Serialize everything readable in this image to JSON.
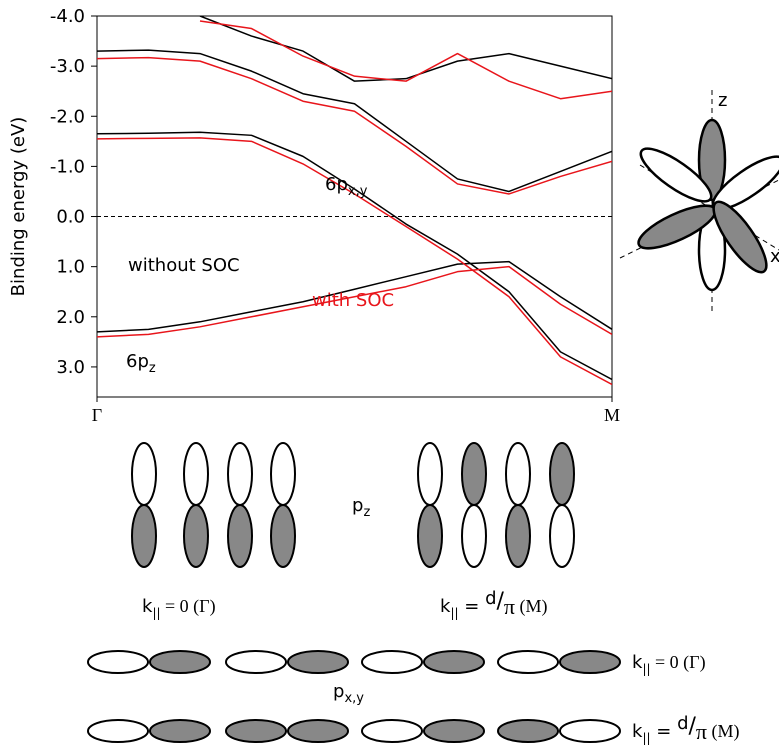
{
  "chart_data": {
    "type": "line",
    "y_label": "Binding energy (eV)",
    "x": [
      0,
      0.1,
      0.2,
      0.3,
      0.4,
      0.5,
      0.6,
      0.7,
      0.8,
      0.9,
      1.0
    ],
    "xlim": [
      0,
      1
    ],
    "xticks": [
      {
        "value": 0,
        "label": "Γ"
      },
      {
        "value": 1,
        "label": "M"
      }
    ],
    "ylim": [
      3.6,
      -4.0
    ],
    "yticks": [
      {
        "value": -4,
        "label": "-4.0"
      },
      {
        "value": -3,
        "label": "-3.0"
      },
      {
        "value": -2,
        "label": "-2.0"
      },
      {
        "value": -1,
        "label": "-1.0"
      },
      {
        "value": 0,
        "label": "0.0"
      },
      {
        "value": 1,
        "label": "1.0"
      },
      {
        "value": 2,
        "label": "2.0"
      },
      {
        "value": 3,
        "label": "3.0"
      }
    ],
    "reference_line": 0,
    "series": [
      {
        "color": "#000000",
        "values": [
          -1.65,
          -1.66,
          -1.68,
          -1.62,
          -1.2,
          -0.55,
          0.15,
          0.75,
          1.5,
          2.7,
          3.25
        ]
      },
      {
        "color": "#000000",
        "values": [
          2.3,
          2.25,
          2.1,
          1.9,
          1.7,
          1.45,
          1.2,
          0.95,
          0.9,
          1.6,
          2.25
        ]
      },
      {
        "color": "#000000",
        "values": [
          -3.3,
          -3.32,
          -3.25,
          -2.9,
          -2.45,
          -2.25,
          -1.5,
          -0.75,
          -0.5,
          -0.9,
          -1.3
        ]
      },
      {
        "color": "#000000",
        "values": [
          null,
          null,
          -4.0,
          -3.6,
          -3.3,
          -2.7,
          -2.75,
          -3.1,
          -3.25,
          -3.0,
          -2.75
        ]
      },
      {
        "color": "#e8151b",
        "values": [
          -1.55,
          -1.56,
          -1.57,
          -1.5,
          -1.05,
          -0.45,
          0.2,
          0.85,
          1.6,
          2.8,
          3.35
        ]
      },
      {
        "color": "#e8151b",
        "values": [
          2.4,
          2.35,
          2.2,
          2.0,
          1.8,
          1.6,
          1.4,
          1.1,
          1.0,
          1.75,
          2.35
        ]
      },
      {
        "color": "#e8151b",
        "values": [
          -3.15,
          -3.17,
          -3.1,
          -2.75,
          -2.3,
          -2.1,
          -1.4,
          -0.65,
          -0.45,
          -0.8,
          -1.1
        ]
      },
      {
        "color": "#e8151b",
        "values": [
          null,
          null,
          -3.9,
          -3.75,
          -3.2,
          -2.8,
          -2.7,
          -3.25,
          -2.7,
          -2.35,
          -2.5
        ]
      }
    ],
    "annotations": [
      {
        "text": "6p",
        "sub": "x,y",
        "color": "#000000"
      },
      {
        "text": "without SOC",
        "color": "#000000"
      },
      {
        "text": "with SOC",
        "color": "#e8151b"
      },
      {
        "text": "6p",
        "sub": "z",
        "color": "#000000"
      }
    ]
  },
  "diagram": {
    "axis_z": "z",
    "axis_x": "x",
    "pz_label": {
      "text": "p",
      "sub": "z"
    },
    "pxy_label": {
      "text": "p",
      "sub": "x,y"
    },
    "k_gamma": {
      "k": "k",
      "sub": "||",
      "rest": " = 0 (Γ)"
    },
    "k_m": {
      "k": "k",
      "sub": "||",
      "eq": " = ",
      "num": "d",
      "slash": "/",
      "den": "π",
      "rest": " (M)"
    }
  }
}
